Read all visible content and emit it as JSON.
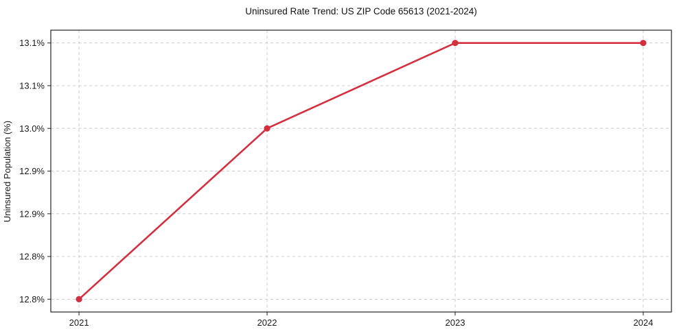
{
  "chart_data": {
    "type": "line",
    "title": "Uninsured Rate Trend: US ZIP Code 65613 (2021-2024)",
    "xlabel": "",
    "ylabel": "Uninsured Population (%)",
    "categories": [
      "2021",
      "2022",
      "2023",
      "2024"
    ],
    "values": [
      12.8,
      13.0,
      13.1,
      13.1
    ],
    "y_ticks": {
      "values": [
        12.8,
        12.85,
        12.9,
        12.95,
        13.0,
        13.05,
        13.1
      ],
      "labels": [
        "12.8%",
        "12.8%",
        "12.9%",
        "12.9%",
        "13.0%",
        "13.1%",
        "13.1%"
      ]
    },
    "xlim": [
      -0.15,
      3.15
    ],
    "ylim": [
      12.785,
      13.115
    ],
    "grid": true,
    "legend": "none",
    "colors": {
      "line": "#d32f3f",
      "marker": "#d32f3f",
      "grid": "#cccccc",
      "axis": "#222222",
      "text": "#1a1a1a",
      "background": "#ffffff"
    }
  }
}
